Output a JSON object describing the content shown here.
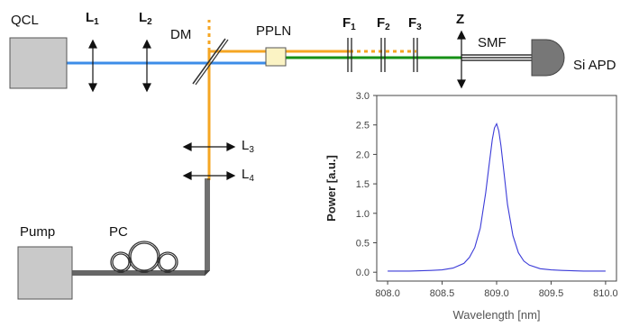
{
  "labels": {
    "qcl": "QCL",
    "l1": "L",
    "l1_sub": "1",
    "l2": "L",
    "l2_sub": "2",
    "dm": "DM",
    "ppln": "PPLN",
    "f1": "F",
    "f1_sub": "1",
    "f2": "F",
    "f2_sub": "2",
    "f3": "F",
    "f3_sub": "3",
    "z": "Z",
    "smf": "SMF",
    "si_apd": "Si APD",
    "l3": "L",
    "l3_sub": "3",
    "l4": "L",
    "l4_sub": "4",
    "pump": "Pump",
    "pc": "PC"
  },
  "colors": {
    "mir_beam": "#3d8de8",
    "pump_beam": "#f5a623",
    "sum_beam": "#169016",
    "fiber": "#333333",
    "component_fill": "#c9c9c9",
    "apd_fill": "#777777",
    "ppln_fill": "#fbf3c4",
    "spectrum_line": "#3b3bd8"
  },
  "chart_data": {
    "type": "line",
    "title": "",
    "xlabel": "Wavelength [nm]",
    "ylabel": "Power [a.u.]",
    "xlim": [
      807.9,
      810.1
    ],
    "ylim": [
      -0.15,
      3.0
    ],
    "xticks": [
      "808.0",
      "808.5",
      "809.0",
      "809.5",
      "810.0"
    ],
    "xtick_values": [
      808.0,
      808.5,
      809.0,
      809.5,
      810.0
    ],
    "yticks": [
      "0.0",
      "0.5",
      "1.0",
      "1.5",
      "2.0",
      "2.5",
      "3.0"
    ],
    "ytick_values": [
      0.0,
      0.5,
      1.0,
      1.5,
      2.0,
      2.5,
      3.0
    ],
    "series": [
      {
        "x": [
          808.0,
          808.2,
          808.4,
          808.5,
          808.6,
          808.7,
          808.75,
          808.8,
          808.85,
          808.9,
          808.93,
          808.96,
          808.98,
          809.0,
          809.02,
          809.04,
          809.07,
          809.1,
          809.15,
          809.2,
          809.25,
          809.3,
          809.4,
          809.5,
          809.6,
          809.8,
          810.0
        ],
        "y": [
          0.02,
          0.02,
          0.03,
          0.04,
          0.07,
          0.15,
          0.25,
          0.42,
          0.75,
          1.35,
          1.8,
          2.25,
          2.45,
          2.52,
          2.4,
          2.15,
          1.65,
          1.15,
          0.62,
          0.33,
          0.19,
          0.12,
          0.06,
          0.04,
          0.03,
          0.02,
          0.02
        ]
      }
    ]
  }
}
